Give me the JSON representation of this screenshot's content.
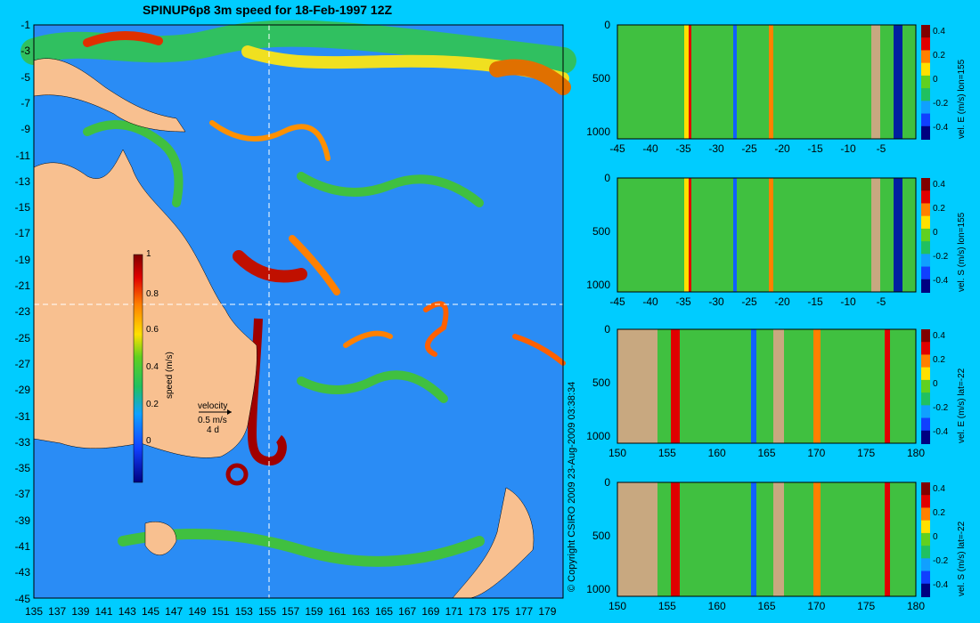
{
  "title": "SPINUP6p8 3m speed for 18-Feb-1997 12Z",
  "copyright": "© Copyright CSIRO 2009   23-Aug-2009 03:38:34",
  "map": {
    "ylabels": [
      "-1",
      "-3",
      "-5",
      "-7",
      "-9",
      "-11",
      "-13",
      "-15",
      "-17",
      "-19",
      "-21",
      "-23",
      "-25",
      "-27",
      "-29",
      "-31",
      "-33",
      "-35",
      "-37",
      "-39",
      "-41",
      "-43",
      "-45"
    ],
    "xlabels": [
      "135",
      "137",
      "139",
      "141",
      "143",
      "145",
      "147",
      "149",
      "151",
      "153",
      "155",
      "157",
      "159",
      "161",
      "163",
      "165",
      "167",
      "169",
      "171",
      "173",
      "175",
      "177",
      "179"
    ],
    "colorbar_label": "speed (m/s)",
    "colorbar_ticks": [
      "1",
      "0.8",
      "0.6",
      "0.4",
      "0.2",
      "0"
    ],
    "velocity_label": "velocity",
    "velocity_scale": "0.5 m/s",
    "velocity_days": "4 d",
    "colors": {
      "land": "#f8c090",
      "ocean": "#2a8cf5"
    }
  },
  "sections": [
    {
      "label": "vel. E (m/s) lon=155",
      "xticks": [
        "-45",
        "-40",
        "-35",
        "-30",
        "-25",
        "-20",
        "-15",
        "-10",
        "-5"
      ],
      "yticks": [
        "0",
        "500",
        "1000"
      ],
      "cbticks": [
        "0.4",
        "0.2",
        "0",
        "-0.2",
        "-0.4"
      ]
    },
    {
      "label": "vel. S (m/s) lon=155",
      "xticks": [
        "-45",
        "-40",
        "-35",
        "-30",
        "-25",
        "-20",
        "-15",
        "-10",
        "-5"
      ],
      "yticks": [
        "0",
        "500",
        "1000"
      ],
      "cbticks": [
        "0.4",
        "0.2",
        "0",
        "-0.2",
        "-0.4"
      ]
    },
    {
      "label": "vel. E (m/s) lat=-22",
      "xticks": [
        "150",
        "155",
        "160",
        "165",
        "170",
        "175",
        "180"
      ],
      "yticks": [
        "0",
        "500",
        "1000"
      ],
      "cbticks": [
        "0.4",
        "0.2",
        "0",
        "-0.2",
        "-0.4"
      ]
    },
    {
      "label": "vel. S (m/s) lat=-22",
      "xticks": [
        "150",
        "155",
        "160",
        "165",
        "170",
        "175",
        "180"
      ],
      "yticks": [
        "0",
        "500",
        "1000"
      ],
      "cbticks": [
        "0.4",
        "0.2",
        "0",
        "-0.2",
        "-0.4"
      ]
    }
  ],
  "chart_data": [
    {
      "type": "heatmap",
      "title": "SPINUP6p8 3m speed for 18-Feb-1997 12Z",
      "xlim": [
        135,
        180
      ],
      "ylim": [
        -45,
        0
      ],
      "colorbar": {
        "label": "speed (m/s)",
        "range": [
          0,
          1
        ]
      }
    },
    {
      "type": "heatmap",
      "label": "vel. E (m/s) lon=155",
      "xlim": [
        -45,
        0
      ],
      "ylim": [
        1000,
        0
      ],
      "colorbar": {
        "range": [
          -0.4,
          0.4
        ]
      }
    },
    {
      "type": "heatmap",
      "label": "vel. S (m/s) lon=155",
      "xlim": [
        -45,
        0
      ],
      "ylim": [
        1000,
        0
      ],
      "colorbar": {
        "range": [
          -0.4,
          0.4
        ]
      }
    },
    {
      "type": "heatmap",
      "label": "vel. E (m/s) lat=-22",
      "xlim": [
        150,
        180
      ],
      "ylim": [
        1000,
        0
      ],
      "colorbar": {
        "range": [
          -0.4,
          0.4
        ]
      }
    },
    {
      "type": "heatmap",
      "label": "vel. S (m/s) lat=-22",
      "xlim": [
        150,
        180
      ],
      "ylim": [
        1000,
        0
      ],
      "colorbar": {
        "range": [
          -0.4,
          0.4
        ]
      }
    }
  ]
}
